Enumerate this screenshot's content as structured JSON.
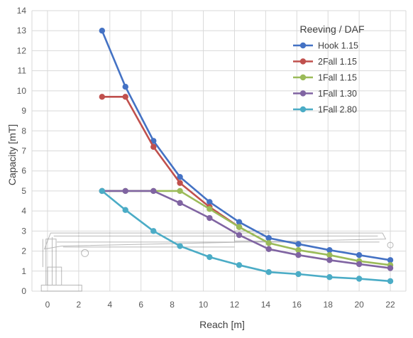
{
  "chart_data": {
    "type": "line",
    "xlabel": "Reach [m]",
    "ylabel": "Capacity [mT]",
    "xlim": [
      -1,
      23
    ],
    "ylim": [
      0,
      14
    ],
    "xticks": [
      0,
      2,
      4,
      6,
      8,
      10,
      12,
      14,
      16,
      18,
      20,
      22
    ],
    "yticks": [
      0,
      1,
      2,
      3,
      4,
      5,
      6,
      7,
      8,
      9,
      10,
      11,
      12,
      13,
      14
    ],
    "grid": "vertical and horizontal",
    "legend": {
      "title": "Reeving / DAF",
      "position": "top-right"
    },
    "series": [
      {
        "name": "Hook 1.15",
        "color": "#4472C4",
        "points": [
          [
            3.5,
            13.0
          ],
          [
            5.0,
            10.2
          ],
          [
            6.8,
            7.5
          ],
          [
            8.5,
            5.7
          ],
          [
            10.4,
            4.45
          ],
          [
            12.3,
            3.45
          ],
          [
            14.2,
            2.65
          ],
          [
            16.1,
            2.35
          ],
          [
            18.1,
            2.05
          ],
          [
            20.0,
            1.8
          ],
          [
            22.0,
            1.55
          ]
        ]
      },
      {
        "name": "2Fall 1.15",
        "color": "#C0504D",
        "points": [
          [
            3.5,
            9.7
          ],
          [
            5.0,
            9.7
          ],
          [
            6.8,
            7.2
          ],
          [
            8.5,
            5.4
          ],
          [
            10.4,
            4.2
          ],
          [
            12.3,
            3.2
          ]
        ]
      },
      {
        "name": "1Fall 1.15",
        "color": "#9BBB59",
        "points": [
          [
            3.5,
            5.0
          ],
          [
            5.0,
            5.0
          ],
          [
            6.8,
            5.0
          ],
          [
            8.5,
            5.0
          ],
          [
            10.4,
            4.1
          ],
          [
            12.3,
            3.2
          ],
          [
            14.2,
            2.4
          ],
          [
            16.1,
            2.05
          ],
          [
            18.1,
            1.8
          ],
          [
            20.0,
            1.5
          ],
          [
            22.0,
            1.3
          ]
        ]
      },
      {
        "name": "1Fall 1.30",
        "color": "#8064A2",
        "points": [
          [
            3.5,
            5.0
          ],
          [
            5.0,
            5.0
          ],
          [
            6.8,
            5.0
          ],
          [
            8.5,
            4.4
          ],
          [
            10.4,
            3.65
          ],
          [
            12.3,
            2.8
          ],
          [
            14.2,
            2.1
          ],
          [
            16.1,
            1.8
          ],
          [
            18.1,
            1.55
          ],
          [
            20.0,
            1.35
          ],
          [
            22.0,
            1.15
          ]
        ]
      },
      {
        "name": "1Fall 2.80",
        "color": "#4BACC6",
        "points": [
          [
            3.5,
            5.0
          ],
          [
            5.0,
            4.05
          ],
          [
            6.8,
            3.0
          ],
          [
            8.5,
            2.25
          ],
          [
            10.4,
            1.7
          ],
          [
            12.3,
            1.3
          ],
          [
            14.2,
            0.95
          ],
          [
            16.1,
            0.85
          ],
          [
            18.1,
            0.7
          ],
          [
            20.0,
            0.62
          ],
          [
            22.0,
            0.5
          ]
        ]
      }
    ]
  }
}
